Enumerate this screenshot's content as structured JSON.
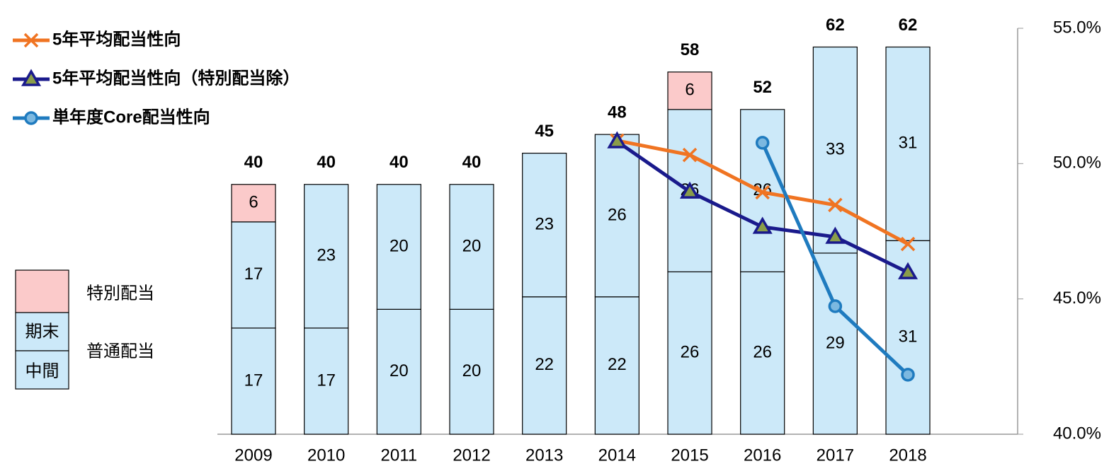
{
  "chart_data": {
    "type": "bar",
    "categories": [
      "2009",
      "2010",
      "2011",
      "2012",
      "2013",
      "2014",
      "2015",
      "2016",
      "2017",
      "2018"
    ],
    "bars": [
      {
        "name": "中間",
        "color": "#cce9f9",
        "values": [
          17,
          17,
          20,
          20,
          22,
          22,
          26,
          26,
          29,
          31
        ]
      },
      {
        "name": "期末",
        "color": "#cce9f9",
        "values": [
          17,
          23,
          20,
          20,
          23,
          26,
          26,
          26,
          33,
          31
        ]
      },
      {
        "name": "特別配当",
        "color": "#fbcaca",
        "values": [
          6,
          null,
          null,
          null,
          null,
          null,
          6,
          null,
          null,
          null
        ]
      }
    ],
    "bar_group_label": "普通配当",
    "totals": [
      40,
      40,
      40,
      40,
      45,
      48,
      58,
      52,
      62,
      62
    ],
    "ylim": [
      0,
      65
    ],
    "series": [
      {
        "name": "5年平均配当性向",
        "color": "#f07422",
        "marker": "x",
        "axis": "y2",
        "values": [
          null,
          null,
          null,
          null,
          null,
          50.85,
          50.32,
          48.94,
          48.47,
          47.03
        ]
      },
      {
        "name": "5年平均配当性向（特別配当除）",
        "color": "#1a1a8c",
        "marker": "triangle",
        "axis": "y2",
        "values": [
          null,
          null,
          null,
          null,
          null,
          50.82,
          48.96,
          47.66,
          47.29,
          45.98
        ]
      },
      {
        "name": "単年度Core配当性向",
        "color": "#1f7bbf",
        "marker": "circle",
        "axis": "y2",
        "values": [
          null,
          null,
          null,
          null,
          null,
          null,
          null,
          50.77,
          44.73,
          42.2
        ]
      }
    ],
    "y2lim": [
      40,
      55
    ],
    "y2ticks": [
      {
        "value": 40,
        "label": "40.0%"
      },
      {
        "value": 45,
        "label": "45.0%"
      },
      {
        "value": 50,
        "label": "50.0%"
      },
      {
        "value": 55,
        "label": "55.0%"
      }
    ]
  }
}
